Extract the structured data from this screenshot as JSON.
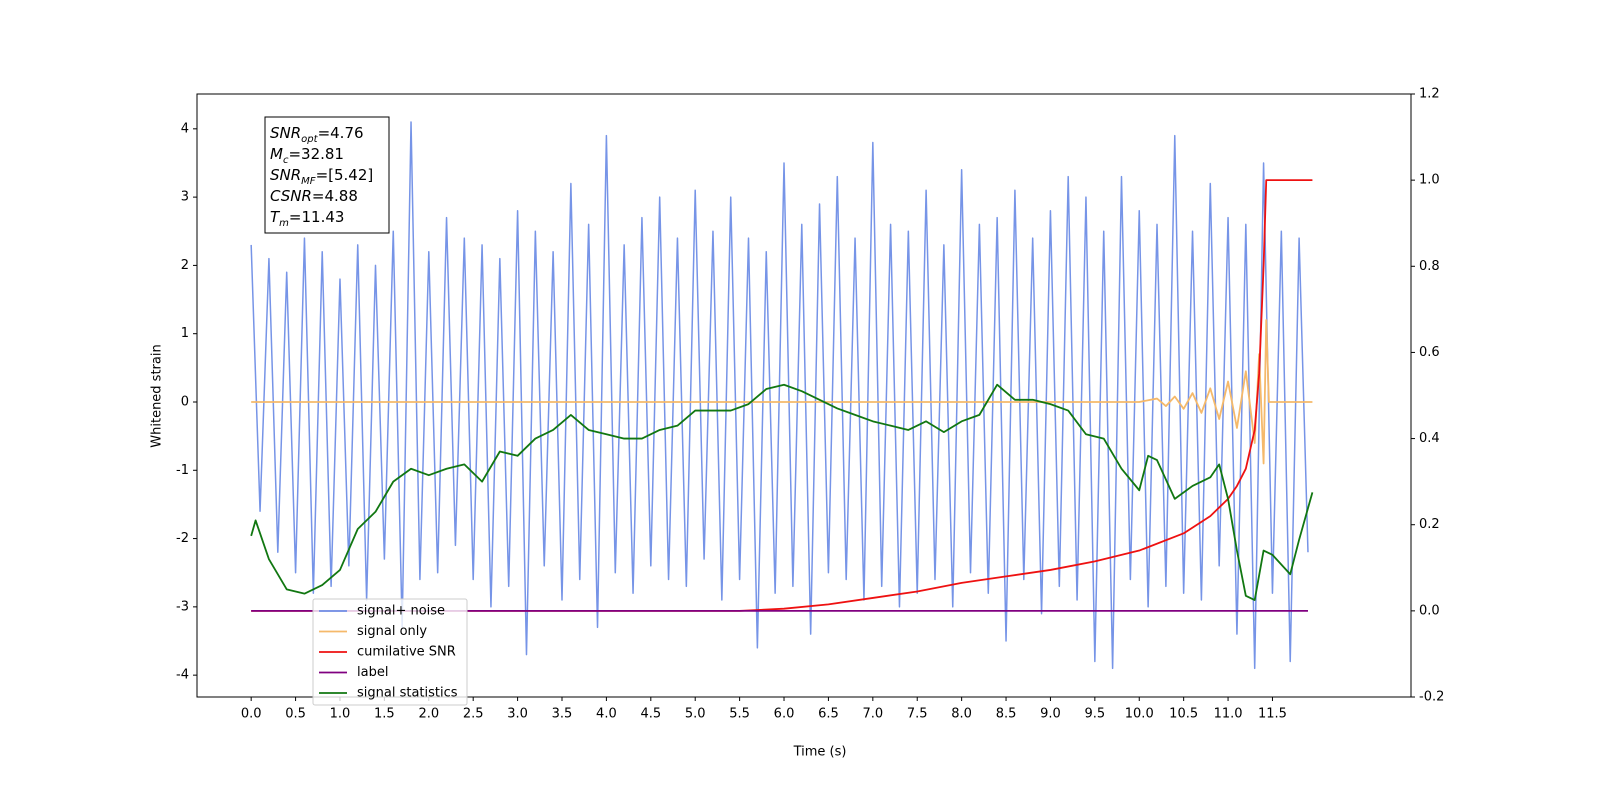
{
  "chart_data": {
    "type": "line",
    "xlabel": "Time (s)",
    "ylabel": "Whitened strain",
    "xlim": [
      -0.61,
      13.06
    ],
    "ylim": [
      -4.32,
      4.51
    ],
    "y2lim": [
      -0.2,
      1.2
    ],
    "xticks": [
      {
        "value": 0,
        "label": "0.0"
      },
      0.5,
      {
        "value": 1,
        "label": "1.0"
      },
      1.5,
      {
        "value": 2,
        "label": "2.0"
      },
      2.5,
      {
        "value": 3,
        "label": "3.0"
      },
      3.5,
      {
        "value": 4,
        "label": "4.0"
      },
      4.5,
      {
        "value": 5,
        "label": "5.0"
      },
      5.5,
      {
        "value": 6,
        "label": "6.0"
      },
      6.5,
      {
        "value": 7,
        "label": "7.0"
      },
      7.5,
      {
        "value": 8,
        "label": "8.0"
      },
      8.5,
      {
        "value": 9,
        "label": "9.0"
      },
      9.5,
      {
        "value": 10,
        "label": "10.0"
      },
      10.5,
      {
        "value": 11,
        "label": "11.0"
      },
      11.5
    ],
    "yticks": [
      -4,
      -3,
      -2,
      -1,
      0,
      1,
      2,
      3,
      4
    ],
    "y2ticks": [
      -0.2,
      {
        "value": 0,
        "label": "0.0"
      },
      0.2,
      0.4,
      0.6,
      0.8,
      {
        "value": 1,
        "label": "1.0"
      },
      1.2
    ],
    "annotations": [
      {
        "main": "SNR",
        "sub": "opt",
        "text": "=4.76"
      },
      {
        "main": "M",
        "sub": "c",
        "text": "=32.81"
      },
      {
        "main": "SNR",
        "sub": "MF",
        "text": "=[5.42]"
      },
      {
        "main": "CSNR",
        "text": "=4.88"
      },
      {
        "main": "T",
        "sub": "m",
        "text": "=11.43"
      }
    ],
    "series": [
      {
        "name": "signal+ noise",
        "color": "#6f8ee6",
        "x": [
          0.0,
          0.1,
          0.2,
          0.3,
          0.4,
          0.5,
          0.6,
          0.7,
          0.8,
          0.9,
          1.0,
          1.1,
          1.2,
          1.3,
          1.4,
          1.5,
          1.6,
          1.7,
          1.8,
          1.9,
          2.0,
          2.1,
          2.2,
          2.3,
          2.4,
          2.5,
          2.6,
          2.7,
          2.8,
          2.9,
          3.0,
          3.1,
          3.2,
          3.3,
          3.4,
          3.5,
          3.6,
          3.7,
          3.8,
          3.9,
          4.0,
          4.1,
          4.2,
          4.3,
          4.4,
          4.5,
          4.6,
          4.7,
          4.8,
          4.9,
          5.0,
          5.1,
          5.2,
          5.3,
          5.4,
          5.5,
          5.6,
          5.7,
          5.8,
          5.9,
          6.0,
          6.1,
          6.2,
          6.3,
          6.4,
          6.5,
          6.6,
          6.7,
          6.8,
          6.9,
          7.0,
          7.1,
          7.2,
          7.3,
          7.4,
          7.5,
          7.6,
          7.7,
          7.8,
          7.9,
          8.0,
          8.1,
          8.2,
          8.3,
          8.4,
          8.5,
          8.6,
          8.7,
          8.8,
          8.9,
          9.0,
          9.1,
          9.2,
          9.3,
          9.4,
          9.5,
          9.6,
          9.7,
          9.8,
          9.9,
          10.0,
          10.1,
          10.2,
          10.3,
          10.4,
          10.5,
          10.6,
          10.7,
          10.8,
          10.9,
          11.0,
          11.1,
          11.2,
          11.3,
          11.4,
          11.5,
          11.6,
          11.7,
          11.8,
          11.9
        ],
        "values": [
          2.3,
          -1.6,
          2.1,
          -2.2,
          1.9,
          -2.5,
          2.4,
          -2.8,
          2.2,
          -2.7,
          1.8,
          -2.4,
          2.3,
          -2.9,
          2.0,
          -2.3,
          2.5,
          -3.3,
          4.1,
          -2.6,
          2.2,
          -2.5,
          2.7,
          -2.1,
          2.4,
          -2.6,
          2.3,
          -3.0,
          2.1,
          -2.7,
          2.8,
          -3.7,
          2.5,
          -2.4,
          2.2,
          -2.9,
          3.2,
          -2.6,
          2.6,
          -3.3,
          3.9,
          -2.5,
          2.3,
          -2.8,
          2.7,
          -2.4,
          3.0,
          -2.6,
          2.4,
          -2.7,
          3.1,
          -2.3,
          2.5,
          -2.9,
          3.0,
          -2.6,
          2.4,
          -3.6,
          2.2,
          -2.8,
          3.5,
          -2.7,
          2.6,
          -3.4,
          2.9,
          -2.5,
          3.3,
          -2.6,
          2.4,
          -2.9,
          3.8,
          -2.7,
          2.6,
          -3.0,
          2.5,
          -2.8,
          3.1,
          -2.6,
          2.3,
          -3.0,
          3.4,
          -2.5,
          2.6,
          -2.8,
          2.7,
          -3.5,
          3.1,
          -2.6,
          2.4,
          -3.1,
          2.8,
          -2.7,
          3.3,
          -2.9,
          3.0,
          -3.8,
          2.5,
          -3.9,
          3.3,
          -2.6,
          2.8,
          -3.0,
          2.6,
          -2.7,
          3.9,
          -2.8,
          2.5,
          -2.9,
          3.2,
          -2.4,
          2.7,
          -3.4,
          2.6,
          -3.9,
          3.5,
          -2.8,
          2.5,
          -3.8,
          2.4,
          -2.2
        ]
      },
      {
        "name": "signal only",
        "color": "#f5b96a",
        "x": [
          0,
          10.0,
          10.2,
          10.3,
          10.4,
          10.5,
          10.6,
          10.7,
          10.8,
          10.9,
          11.0,
          11.1,
          11.2,
          11.3,
          11.35,
          11.4,
          11.43,
          11.46,
          11.95
        ],
        "values": [
          0,
          0,
          0.05,
          -0.06,
          0.08,
          -0.1,
          0.13,
          -0.16,
          0.2,
          -0.25,
          0.3,
          -0.38,
          0.45,
          -0.6,
          0.7,
          -0.9,
          1.2,
          0,
          0
        ]
      },
      {
        "name": "cumilative SNR",
        "color": "#ee1111",
        "axis": "y2",
        "x": [
          0,
          5.5,
          6,
          6.5,
          7,
          7.5,
          8,
          8.5,
          9,
          9.5,
          10,
          10.5,
          10.8,
          11,
          11.1,
          11.2,
          11.3,
          11.35,
          11.4,
          11.43,
          11.95
        ],
        "values": [
          0,
          0,
          0.005,
          0.015,
          0.03,
          0.045,
          0.065,
          0.08,
          0.095,
          0.115,
          0.14,
          0.18,
          0.22,
          0.26,
          0.29,
          0.33,
          0.42,
          0.55,
          0.8,
          1.0,
          1.0
        ]
      },
      {
        "name": "label",
        "color": "#800080",
        "axis": "y2",
        "x": [
          0,
          11.9
        ],
        "values": [
          0,
          0
        ]
      },
      {
        "name": "signal statistics",
        "color": "#117711",
        "axis": "y2",
        "x": [
          0,
          0.05,
          0.2,
          0.4,
          0.6,
          0.8,
          1.0,
          1.2,
          1.4,
          1.6,
          1.8,
          2.0,
          2.2,
          2.4,
          2.6,
          2.8,
          3.0,
          3.2,
          3.4,
          3.6,
          3.8,
          4.0,
          4.2,
          4.4,
          4.6,
          4.8,
          5.0,
          5.2,
          5.4,
          5.6,
          5.8,
          6.0,
          6.2,
          6.4,
          6.6,
          6.8,
          7.0,
          7.2,
          7.4,
          7.6,
          7.8,
          8.0,
          8.2,
          8.4,
          8.6,
          8.8,
          9.0,
          9.2,
          9.4,
          9.6,
          9.8,
          10.0,
          10.1,
          10.2,
          10.4,
          10.6,
          10.8,
          10.9,
          11.0,
          11.1,
          11.2,
          11.3,
          11.4,
          11.5,
          11.7,
          11.8,
          11.95
        ],
        "values": [
          0.174,
          0.21,
          0.12,
          0.05,
          0.04,
          0.06,
          0.095,
          0.19,
          0.23,
          0.3,
          0.33,
          0.315,
          0.33,
          0.34,
          0.3,
          0.37,
          0.36,
          0.4,
          0.42,
          0.455,
          0.42,
          0.41,
          0.4,
          0.4,
          0.42,
          0.43,
          0.465,
          0.465,
          0.465,
          0.48,
          0.515,
          0.525,
          0.51,
          0.49,
          0.47,
          0.455,
          0.44,
          0.43,
          0.42,
          0.44,
          0.415,
          0.44,
          0.455,
          0.525,
          0.49,
          0.49,
          0.48,
          0.465,
          0.41,
          0.4,
          0.33,
          0.28,
          0.36,
          0.35,
          0.26,
          0.29,
          0.31,
          0.34,
          0.26,
          0.14,
          0.035,
          0.025,
          0.14,
          0.13,
          0.085,
          0.165,
          0.275
        ]
      }
    ]
  }
}
